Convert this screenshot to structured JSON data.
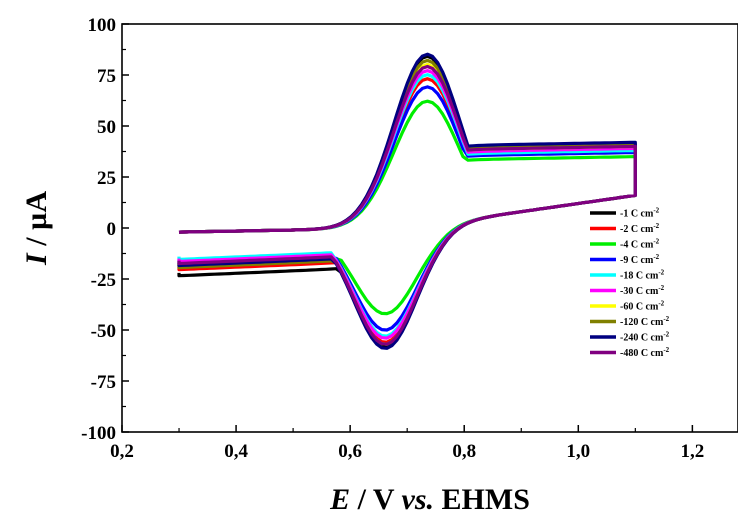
{
  "chart_data": {
    "type": "line",
    "title": "",
    "xlabel": {
      "italic": "E",
      "plain": " / V ",
      "italic2": "vs.",
      "plain2": " EHMS"
    },
    "ylabel": {
      "italic": "I",
      "plain": " / µA"
    },
    "xlim": [
      0.2,
      1.28
    ],
    "ylim": [
      -100,
      100
    ],
    "xticks": [
      0.2,
      0.4,
      0.6,
      0.8,
      1.0,
      1.2
    ],
    "xtick_labels": [
      "0,2",
      "0,4",
      "0,6",
      "0,8",
      "1,0",
      "1,2"
    ],
    "yticks": [
      -100,
      -75,
      -50,
      -25,
      0,
      25,
      50,
      75,
      100
    ],
    "ytick_labels": [
      "-100",
      "-75",
      "-50",
      "-25",
      "0",
      "25",
      "50",
      "75",
      "100"
    ],
    "grid": false,
    "legend_position": "right",
    "e_start": 0.3,
    "e_vertex": 1.1,
    "series": [
      {
        "name": "-1 C cm",
        "sup": "-2",
        "color": "#000000",
        "ipa": 84,
        "ipc": -59,
        "i_high": 41,
        "i_end": -22
      },
      {
        "name": "-2 C cm",
        "sup": "-2",
        "color": "#ff0000",
        "ipa": 73,
        "ipc": -57,
        "i_high": 40,
        "i_end": -19
      },
      {
        "name": "-4 C cm",
        "sup": "-2",
        "color": "#00ee00",
        "ipa": 62,
        "ipc": -43,
        "i_high": 35,
        "i_end": -17
      },
      {
        "name": "-9 C cm",
        "sup": "-2",
        "color": "#0000ff",
        "ipa": 69,
        "ipc": -51,
        "i_high": 37,
        "i_end": -16
      },
      {
        "name": "-18 C cm",
        "sup": "-2",
        "color": "#00ffff",
        "ipa": 75,
        "ipc": -54,
        "i_high": 38,
        "i_end": -14
      },
      {
        "name": "-30 C cm",
        "sup": "-2",
        "color": "#ff00ff",
        "ipa": 77,
        "ipc": -55,
        "i_high": 39,
        "i_end": -15
      },
      {
        "name": "-60 C cm",
        "sup": "-2",
        "color": "#ffff00",
        "ipa": 80,
        "ipc": -58,
        "i_high": 40,
        "i_end": -17
      },
      {
        "name": "-120 C cm",
        "sup": "-2",
        "color": "#808000",
        "ipa": 82,
        "ipc": -58,
        "i_high": 41,
        "i_end": -18
      },
      {
        "name": "-240 C cm",
        "sup": "-2",
        "color": "#000080",
        "ipa": 85,
        "ipc": -60,
        "i_high": 42,
        "i_end": -17
      },
      {
        "name": "-480 C cm",
        "sup": "-2",
        "color": "#800080",
        "ipa": 79,
        "ipc": -58,
        "i_high": 40,
        "i_end": -16
      }
    ]
  }
}
